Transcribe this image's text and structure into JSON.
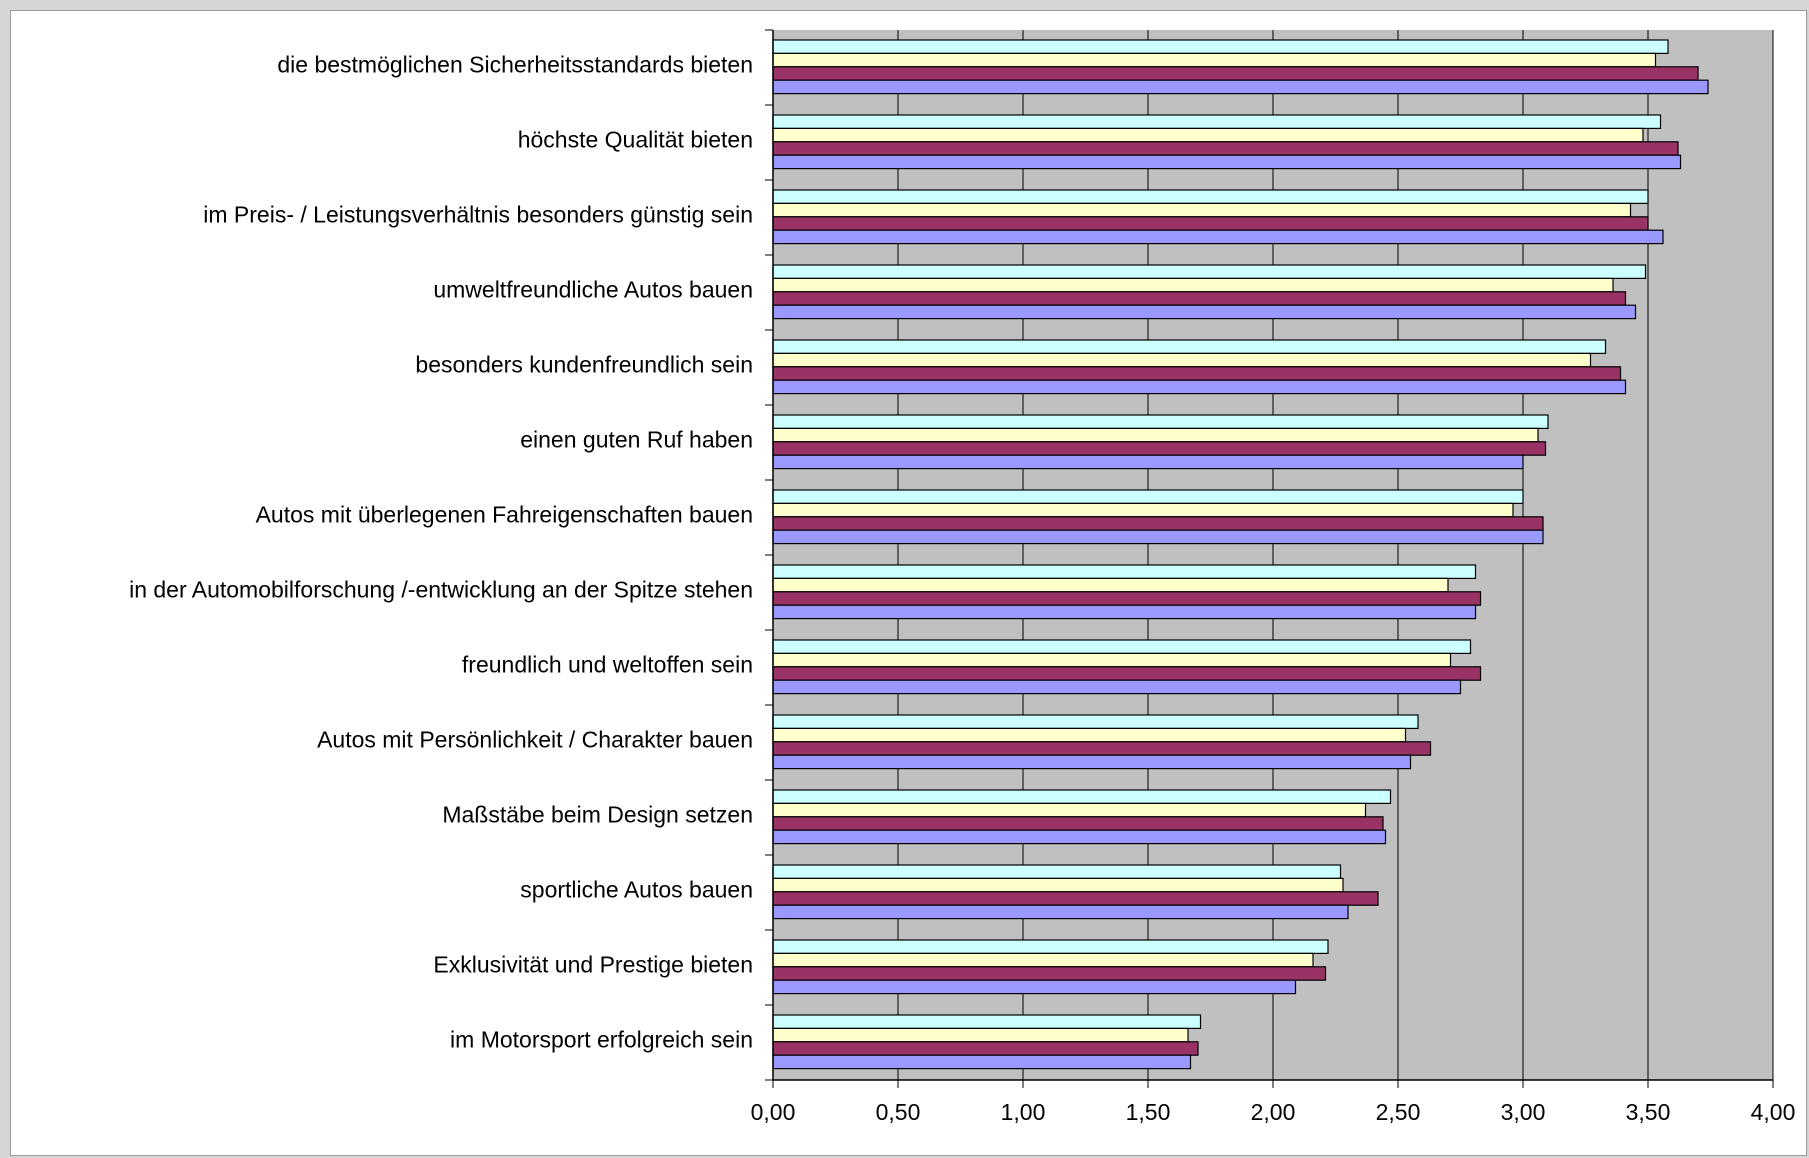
{
  "chart_data": {
    "type": "bar",
    "orientation": "horizontal",
    "categories": [
      "die bestmöglichen Sicherheitsstandards bieten",
      "höchste Qualität bieten",
      "im Preis- / Leistungsverhältnis besonders günstig sein",
      "umweltfreundliche Autos bauen",
      "besonders kundenfreundlich sein",
      "einen guten Ruf haben",
      "Autos mit überlegenen Fahreigenschaften bauen",
      "in der Automobilforschung /-entwicklung an der Spitze stehen",
      "freundlich und weltoffen sein",
      "Autos mit Persönlichkeit / Charakter bauen",
      "Maßstäbe beim Design setzen",
      "sportliche Autos bauen",
      "Exklusivität und Prestige bieten",
      "im Motorsport erfolgreich sein"
    ],
    "series": [
      {
        "color": "#ccffff",
        "values": [
          3.58,
          3.55,
          3.5,
          3.49,
          3.33,
          3.1,
          3.0,
          2.81,
          2.79,
          2.58,
          2.47,
          2.27,
          2.22,
          1.71
        ]
      },
      {
        "color": "#ffffcc",
        "values": [
          3.53,
          3.48,
          3.43,
          3.36,
          3.27,
          3.06,
          2.96,
          2.7,
          2.71,
          2.53,
          2.37,
          2.28,
          2.16,
          1.66
        ]
      },
      {
        "color": "#993366",
        "values": [
          3.7,
          3.62,
          3.5,
          3.41,
          3.39,
          3.09,
          3.08,
          2.83,
          2.83,
          2.63,
          2.44,
          2.42,
          2.21,
          1.7
        ]
      },
      {
        "color": "#9999ff",
        "values": [
          3.74,
          3.63,
          3.56,
          3.45,
          3.41,
          3.0,
          3.08,
          2.81,
          2.75,
          2.55,
          2.45,
          2.3,
          2.09,
          1.67
        ]
      }
    ],
    "xlim": [
      0,
      4
    ],
    "x_ticks": [
      "0,00",
      "0,50",
      "1,00",
      "1,50",
      "2,00",
      "2,50",
      "3,00",
      "3,50",
      "4,00"
    ],
    "grid": true,
    "plot_background": "#c0c0c0",
    "legend": "none"
  }
}
